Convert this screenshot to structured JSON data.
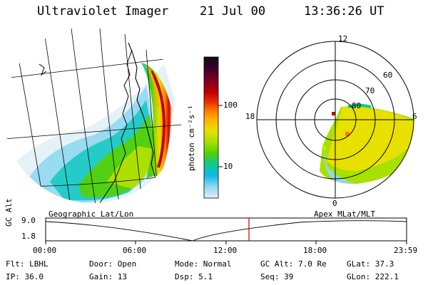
{
  "header": {
    "instrument": "Ultraviolet Imager",
    "date": "21 Jul 00",
    "time": "13:36:26 UT"
  },
  "colorbar": {
    "unit_label": "photon cm⁻²s⁻¹",
    "ticks": [
      "100",
      "10"
    ],
    "colors": [
      "#101010",
      "#3b0030",
      "#7a0020",
      "#c00000",
      "#e83000",
      "#ff7a00",
      "#ffb000",
      "#e8e000",
      "#a8e000",
      "#58d000",
      "#10c890",
      "#10b8e8",
      "#90d8f0",
      "#e0f0f8"
    ]
  },
  "left_panel": {
    "label": "Geographic Lat/Lon"
  },
  "right_panel": {
    "label": "Apex MLat/MLT",
    "mlt_labels": {
      "top": "12",
      "left": "18",
      "right": "6",
      "bottom": "0"
    },
    "lat_labels": [
      "60",
      "70",
      "80"
    ]
  },
  "timeline": {
    "ylabel": "GC Alt",
    "y_ticks": [
      "9.0",
      "1.8"
    ],
    "x_ticks": [
      "00:00",
      "06:00",
      "12:00",
      "18:00",
      "23:59"
    ],
    "marker_color": "#c00000"
  },
  "footer": {
    "row1": [
      {
        "label": "Flt:",
        "value": "LBHL"
      },
      {
        "label": "Door:",
        "value": "Open"
      },
      {
        "label": "Mode:",
        "value": "Normal"
      },
      {
        "label": "GC Alt:",
        "value": "7.0 Re"
      },
      {
        "label": "GLat:",
        "value": "37.3"
      }
    ],
    "row2": [
      {
        "label": "IP:",
        "value": "36.0"
      },
      {
        "label": "Gain:",
        "value": "13"
      },
      {
        "label": "Dsp:",
        "value": "5.1"
      },
      {
        "label": "Seq:",
        "value": "39"
      },
      {
        "label": "GLon:",
        "value": "222.1"
      }
    ]
  }
}
